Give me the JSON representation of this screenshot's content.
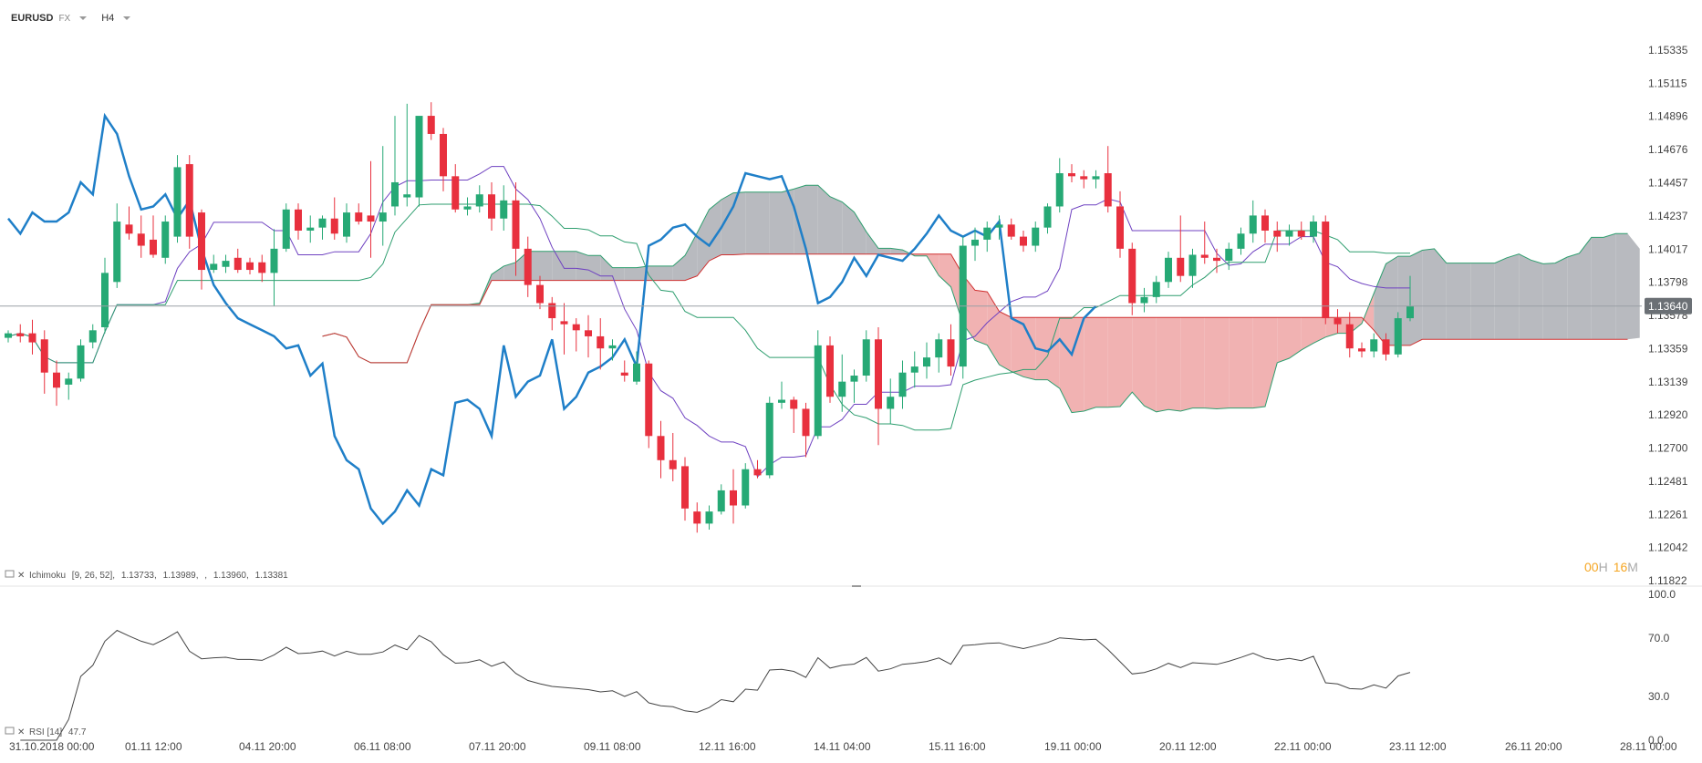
{
  "toolbar": {
    "symbol": "EURUSD",
    "market": "FX",
    "timeframe": "H4"
  },
  "chart_data": {
    "type": "candlestick",
    "symbol": "EURUSD",
    "timeframe": "H4",
    "price_axis": {
      "ticks": [
        "1.15335",
        "1.15115",
        "1.14896",
        "1.14676",
        "1.14457",
        "1.14237",
        "1.14017",
        "1.13798",
        "1.13578",
        "1.13359",
        "1.13139",
        "1.12920",
        "1.12700",
        "1.12481",
        "1.12261",
        "1.12042",
        "1.11822"
      ],
      "range": [
        1.11822,
        1.15335
      ],
      "current_price": "1.13640"
    },
    "time_axis": {
      "labels": [
        "31.10.2018  00:00",
        "01.11  12:00",
        "04.11  20:00",
        "06.11  08:00",
        "07.11  20:00",
        "09.11  08:00",
        "12.11  16:00",
        "14.11  04:00",
        "15.11  16:00",
        "19.11  00:00",
        "20.11  12:00",
        "22.11  00:00",
        "23.11  12:00",
        "26.11  20:00",
        "28.11  00:00"
      ]
    },
    "candles_ohlc": [
      [
        1.1343,
        1.1348,
        1.134,
        1.1346
      ],
      [
        1.1346,
        1.1352,
        1.134,
        1.1344
      ],
      [
        1.1346,
        1.1355,
        1.1332,
        1.134
      ],
      [
        1.1342,
        1.1348,
        1.1306,
        1.132
      ],
      [
        1.132,
        1.1328,
        1.1298,
        1.131
      ],
      [
        1.1312,
        1.132,
        1.1302,
        1.1316
      ],
      [
        1.1316,
        1.1342,
        1.1314,
        1.1338
      ],
      [
        1.134,
        1.1352,
        1.1336,
        1.1348
      ],
      [
        1.135,
        1.1396,
        1.1346,
        1.1386
      ],
      [
        1.138,
        1.1432,
        1.1376,
        1.142
      ],
      [
        1.1418,
        1.143,
        1.1408,
        1.1412
      ],
      [
        1.1412,
        1.1424,
        1.1396,
        1.1404
      ],
      [
        1.1408,
        1.1424,
        1.1396,
        1.1398
      ],
      [
        1.1396,
        1.1424,
        1.1392,
        1.142
      ],
      [
        1.141,
        1.1464,
        1.1406,
        1.1456
      ],
      [
        1.1458,
        1.1464,
        1.1402,
        1.141
      ],
      [
        1.1426,
        1.1428,
        1.1375,
        1.1388
      ],
      [
        1.1388,
        1.1398,
        1.1386,
        1.1392
      ],
      [
        1.139,
        1.1398,
        1.1386,
        1.1394
      ],
      [
        1.1396,
        1.1402,
        1.1386,
        1.1388
      ],
      [
        1.1393,
        1.1396,
        1.1385,
        1.1388
      ],
      [
        1.1393,
        1.1398,
        1.138,
        1.1386
      ],
      [
        1.1386,
        1.1415,
        1.1364,
        1.1402
      ],
      [
        1.1402,
        1.1432,
        1.14,
        1.1428
      ],
      [
        1.1428,
        1.1432,
        1.1408,
        1.1414
      ],
      [
        1.1414,
        1.1424,
        1.1406,
        1.1416
      ],
      [
        1.1416,
        1.1424,
        1.1408,
        1.1422
      ],
      [
        1.1422,
        1.1436,
        1.1408,
        1.1412
      ],
      [
        1.141,
        1.1432,
        1.1406,
        1.1426
      ],
      [
        1.1426,
        1.1432,
        1.1418,
        1.142
      ],
      [
        1.1424,
        1.146,
        1.1396,
        1.142
      ],
      [
        1.142,
        1.147,
        1.1404,
        1.1426
      ],
      [
        1.143,
        1.149,
        1.1424,
        1.1446
      ],
      [
        1.1436,
        1.1498,
        1.143,
        1.1438
      ],
      [
        1.1436,
        1.1488,
        1.143,
        1.149
      ],
      [
        1.149,
        1.1499,
        1.1474,
        1.1478
      ],
      [
        1.1478,
        1.1482,
        1.144,
        1.145
      ],
      [
        1.145,
        1.1458,
        1.1426,
        1.1428
      ],
      [
        1.1428,
        1.1436,
        1.1424,
        1.143
      ],
      [
        1.143,
        1.1444,
        1.1426,
        1.1438
      ],
      [
        1.1438,
        1.1446,
        1.1414,
        1.1422
      ],
      [
        1.1422,
        1.1444,
        1.1414,
        1.1434
      ],
      [
        1.1434,
        1.1446,
        1.1384,
        1.1402
      ],
      [
        1.1402,
        1.141,
        1.137,
        1.1378
      ],
      [
        1.1378,
        1.1384,
        1.1362,
        1.1366
      ],
      [
        1.1366,
        1.137,
        1.1348,
        1.1356
      ],
      [
        1.1354,
        1.1366,
        1.1332,
        1.1352
      ],
      [
        1.1352,
        1.1356,
        1.1334,
        1.1348
      ],
      [
        1.1348,
        1.1358,
        1.133,
        1.1344
      ],
      [
        1.1344,
        1.1356,
        1.1322,
        1.1336
      ],
      [
        1.1336,
        1.1342,
        1.1328,
        1.1338
      ],
      [
        1.132,
        1.1328,
        1.1314,
        1.1318
      ],
      [
        1.1314,
        1.1334,
        1.1312,
        1.1326
      ],
      [
        1.1326,
        1.1328,
        1.127,
        1.1278
      ],
      [
        1.1278,
        1.1288,
        1.125,
        1.1262
      ],
      [
        1.1262,
        1.128,
        1.1248,
        1.1256
      ],
      [
        1.1258,
        1.1264,
        1.1222,
        1.123
      ],
      [
        1.1228,
        1.1234,
        1.1214,
        1.122
      ],
      [
        1.122,
        1.1232,
        1.1216,
        1.1228
      ],
      [
        1.1228,
        1.1246,
        1.1226,
        1.1242
      ],
      [
        1.1242,
        1.1256,
        1.122,
        1.1232
      ],
      [
        1.1232,
        1.126,
        1.123,
        1.1256
      ],
      [
        1.1256,
        1.1262,
        1.125,
        1.1252
      ],
      [
        1.1252,
        1.1304,
        1.125,
        1.13
      ],
      [
        1.13,
        1.1314,
        1.1296,
        1.1302
      ],
      [
        1.1302,
        1.1304,
        1.128,
        1.1296
      ],
      [
        1.1296,
        1.13,
        1.1264,
        1.1278
      ],
      [
        1.1278,
        1.1348,
        1.1276,
        1.1338
      ],
      [
        1.1338,
        1.1344,
        1.13,
        1.1304
      ],
      [
        1.1304,
        1.1332,
        1.1294,
        1.1314
      ],
      [
        1.1314,
        1.1322,
        1.13,
        1.1318
      ],
      [
        1.1318,
        1.1348,
        1.1314,
        1.1342
      ],
      [
        1.1342,
        1.135,
        1.1272,
        1.1296
      ],
      [
        1.1296,
        1.1316,
        1.1286,
        1.1304
      ],
      [
        1.1304,
        1.1328,
        1.1296,
        1.132
      ],
      [
        1.132,
        1.1334,
        1.131,
        1.1324
      ],
      [
        1.1324,
        1.134,
        1.1316,
        1.133
      ],
      [
        1.133,
        1.1346,
        1.132,
        1.1342
      ],
      [
        1.1342,
        1.1352,
        1.1318,
        1.1324
      ],
      [
        1.1324,
        1.141,
        1.1316,
        1.1404
      ],
      [
        1.1404,
        1.1416,
        1.1394,
        1.1408
      ],
      [
        1.1408,
        1.142,
        1.14,
        1.1416
      ],
      [
        1.1416,
        1.1424,
        1.1408,
        1.1418
      ],
      [
        1.1418,
        1.1422,
        1.1408,
        1.141
      ],
      [
        1.141,
        1.1414,
        1.14,
        1.1404
      ],
      [
        1.1404,
        1.142,
        1.14,
        1.1416
      ],
      [
        1.1416,
        1.1432,
        1.1412,
        1.143
      ],
      [
        1.143,
        1.1462,
        1.1426,
        1.1452
      ],
      [
        1.1452,
        1.1458,
        1.1446,
        1.145
      ],
      [
        1.145,
        1.1454,
        1.1442,
        1.1448
      ],
      [
        1.1448,
        1.1454,
        1.1442,
        1.145
      ],
      [
        1.1452,
        1.147,
        1.1426,
        1.143
      ],
      [
        1.143,
        1.144,
        1.1396,
        1.1402
      ],
      [
        1.1402,
        1.1406,
        1.1358,
        1.1366
      ],
      [
        1.1366,
        1.1376,
        1.136,
        1.137
      ],
      [
        1.137,
        1.1384,
        1.1366,
        1.138
      ],
      [
        1.138,
        1.14,
        1.1376,
        1.1396
      ],
      [
        1.1396,
        1.1424,
        1.138,
        1.1384
      ],
      [
        1.1384,
        1.1402,
        1.1376,
        1.1398
      ],
      [
        1.1398,
        1.142,
        1.1392,
        1.1396
      ],
      [
        1.1396,
        1.1402,
        1.1386,
        1.1394
      ],
      [
        1.1394,
        1.1406,
        1.1388,
        1.1402
      ],
      [
        1.1402,
        1.1416,
        1.1398,
        1.1412
      ],
      [
        1.1412,
        1.1434,
        1.1406,
        1.1424
      ],
      [
        1.1424,
        1.1428,
        1.1406,
        1.1414
      ],
      [
        1.1414,
        1.142,
        1.14,
        1.141
      ],
      [
        1.141,
        1.1418,
        1.1404,
        1.1414
      ],
      [
        1.1414,
        1.142,
        1.1408,
        1.141
      ],
      [
        1.141,
        1.1424,
        1.1406,
        1.142
      ],
      [
        1.142,
        1.1424,
        1.1352,
        1.1356
      ],
      [
        1.1356,
        1.1362,
        1.1346,
        1.1352
      ],
      [
        1.1352,
        1.136,
        1.133,
        1.1336
      ],
      [
        1.1336,
        1.134,
        1.133,
        1.1334
      ],
      [
        1.1334,
        1.1346,
        1.133,
        1.1342
      ],
      [
        1.1342,
        1.1346,
        1.1328,
        1.1332
      ],
      [
        1.1332,
        1.136,
        1.133,
        1.1356
      ],
      [
        1.1356,
        1.1384,
        1.1354,
        1.1364
      ]
    ],
    "ichimoku": {
      "label": "Ichimoku",
      "params": "[9, 26, 52]",
      "values": [
        "1.13733,",
        "1.13989,",
        "",
        "1.13960,",
        "1.13381"
      ]
    },
    "rsi": {
      "label": "RSI [14]",
      "value": "47.7",
      "ticks": [
        "100.0",
        "70.0",
        "30.0",
        "0.0"
      ],
      "range": [
        0,
        100
      ]
    },
    "countdown": {
      "hours": "00",
      "h_unit": "H",
      "minutes": "16",
      "m_unit": "M"
    },
    "colors": {
      "bull": "#26a975",
      "bear": "#e8303e",
      "tenkan": "#6f42c1",
      "kijun": "#2e9e6f",
      "chikou": "#1f7fc8",
      "cloud_bear": "#f0aaaa",
      "cloud_bull": "#b0b3b8",
      "span_a": "#2e9e6f",
      "span_b": "#d03030",
      "rsi": "#444444",
      "timer": "#f5a623"
    }
  }
}
